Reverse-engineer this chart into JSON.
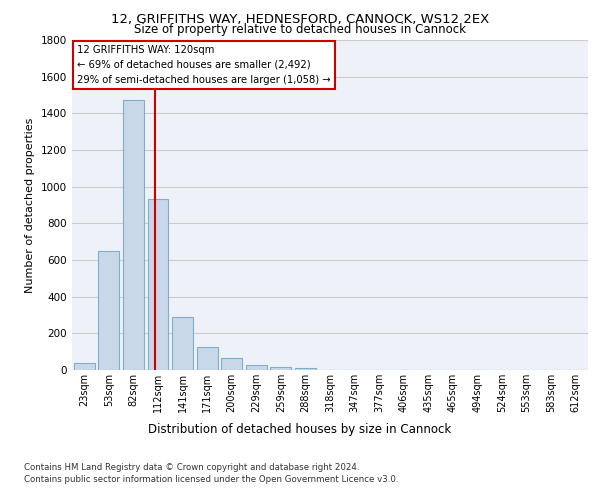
{
  "title_line1": "12, GRIFFITHS WAY, HEDNESFORD, CANNOCK, WS12 2EX",
  "title_line2": "Size of property relative to detached houses in Cannock",
  "xlabel": "Distribution of detached houses by size in Cannock",
  "ylabel": "Number of detached properties",
  "bar_categories": [
    "23sqm",
    "53sqm",
    "82sqm",
    "112sqm",
    "141sqm",
    "171sqm",
    "200sqm",
    "229sqm",
    "259sqm",
    "288sqm",
    "318sqm",
    "347sqm",
    "377sqm",
    "406sqm",
    "435sqm",
    "465sqm",
    "494sqm",
    "524sqm",
    "553sqm",
    "583sqm",
    "612sqm"
  ],
  "bar_values": [
    40,
    650,
    1475,
    935,
    290,
    125,
    65,
    25,
    15,
    10,
    0,
    0,
    0,
    0,
    0,
    0,
    0,
    0,
    0,
    0,
    0
  ],
  "bar_color": "#c8d8e8",
  "bar_edgecolor": "#7fafc8",
  "property_line_label": "12 GRIFFITHS WAY: 120sqm",
  "annotation_line2": "← 69% of detached houses are smaller (2,492)",
  "annotation_line3": "29% of semi-detached houses are larger (1,058) →",
  "annotation_color": "#cc0000",
  "vline_color": "#cc0000",
  "vline_x": 2.87,
  "ylim": [
    0,
    1800
  ],
  "yticks": [
    0,
    200,
    400,
    600,
    800,
    1000,
    1200,
    1400,
    1600,
    1800
  ],
  "footnote1": "Contains HM Land Registry data © Crown copyright and database right 2024.",
  "footnote2": "Contains public sector information licensed under the Open Government Licence v3.0.",
  "bg_color": "#ffffff",
  "plot_bg_color": "#eef2f8",
  "grid_color": "#cccccc"
}
